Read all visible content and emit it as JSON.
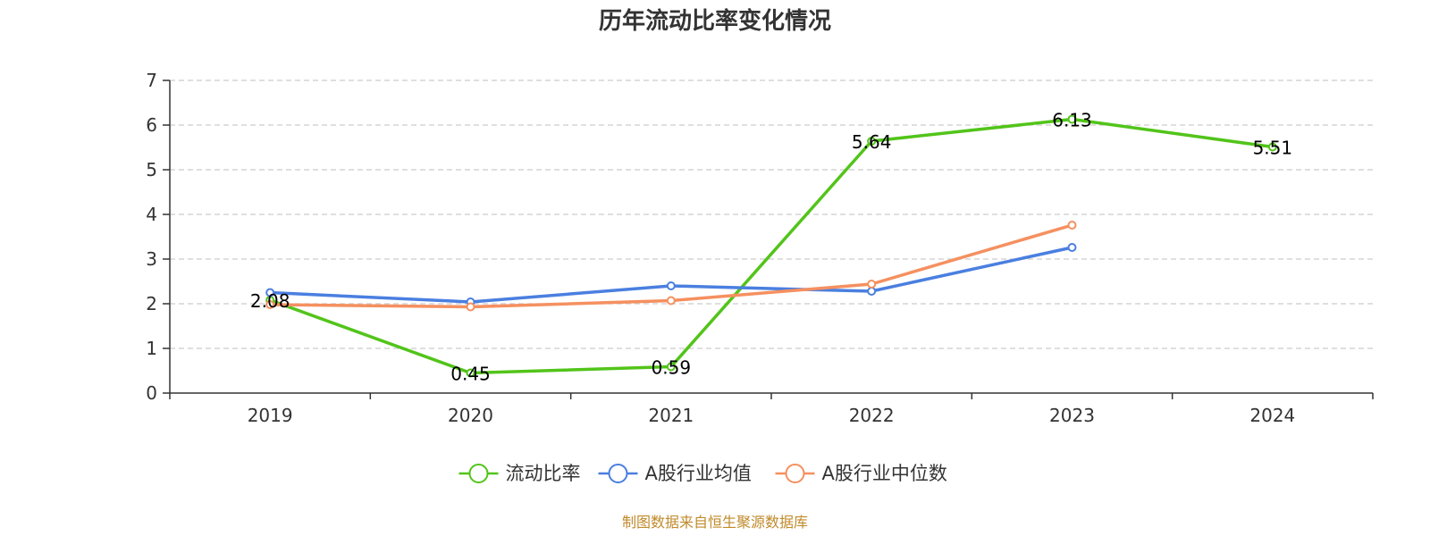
{
  "chart_data": {
    "type": "line",
    "title": "历年流动比率变化情况",
    "categories": [
      "2019",
      "2020",
      "2021",
      "2022",
      "2023",
      "2024"
    ],
    "y_ticks": [
      "0",
      "1",
      "2",
      "3",
      "4",
      "5",
      "6",
      "7"
    ],
    "ylim": [
      0,
      7
    ],
    "grid": true,
    "legend_position": "bottom-center",
    "series": [
      {
        "name": "流动比率",
        "color": "#52c41a",
        "values": [
          2.08,
          0.45,
          0.59,
          5.64,
          6.13,
          5.51
        ],
        "labels": [
          "2.08",
          "0.45",
          "0.59",
          "5.64",
          "6.13",
          "5.51"
        ]
      },
      {
        "name": "A股行业均值",
        "color": "#4a7fe0",
        "values": [
          2.25,
          2.04,
          2.4,
          2.28,
          3.26,
          null
        ]
      },
      {
        "name": "A股行业中位数",
        "color": "#f59060",
        "values": [
          1.98,
          1.93,
          2.07,
          2.44,
          3.76,
          null
        ]
      }
    ]
  },
  "source": "制图数据来自恒生聚源数据库"
}
